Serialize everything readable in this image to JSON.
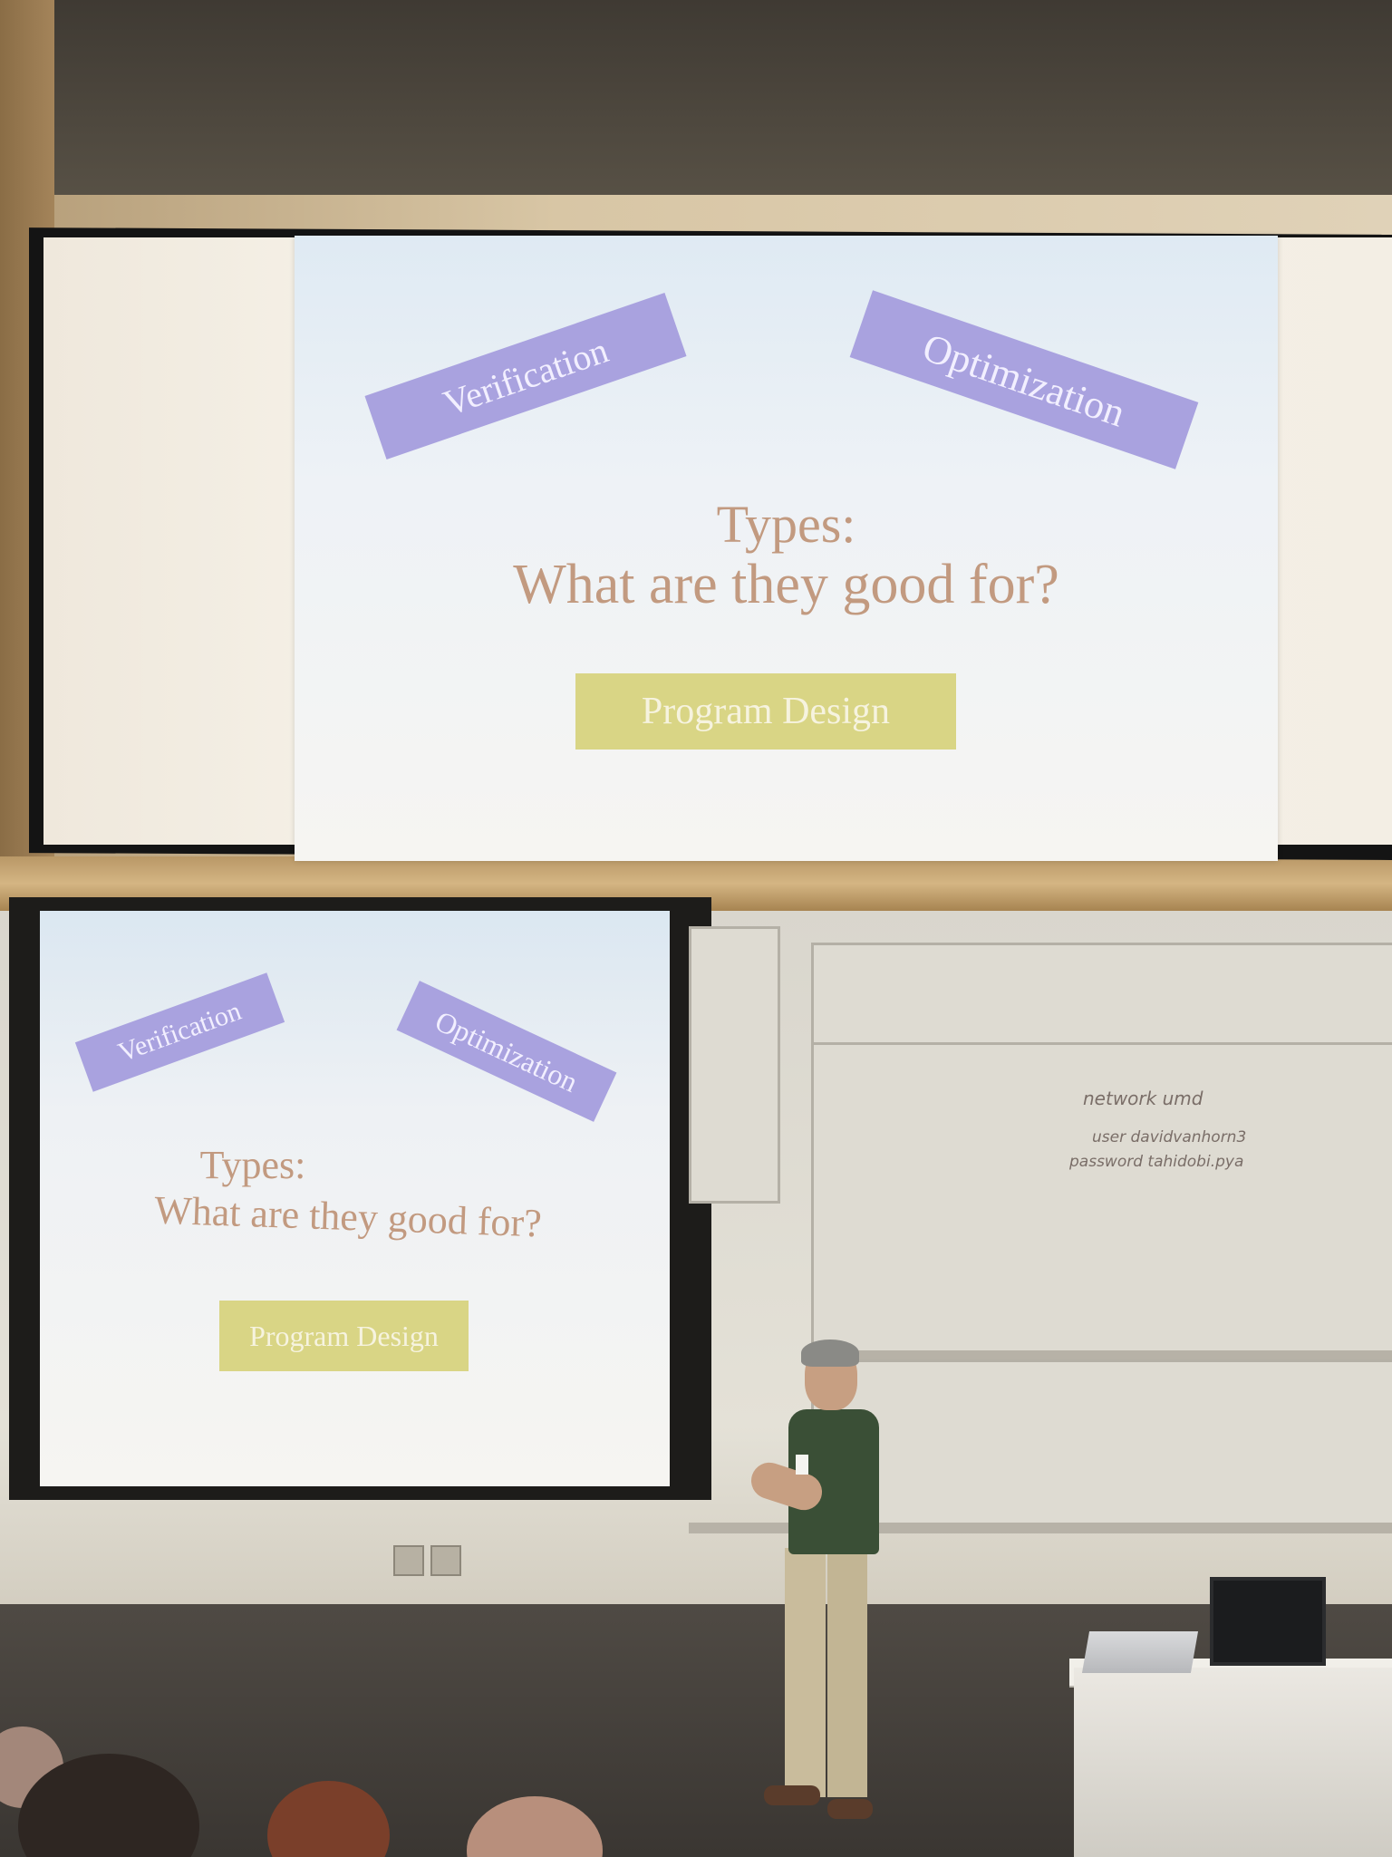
{
  "slide": {
    "tag_left": "Verification",
    "tag_right": "Optimization",
    "title_line1": "Types:",
    "title_line2": "What are they good for?",
    "tag_bottom": "Program Design"
  },
  "whiteboard": {
    "line1": "network   umd",
    "line2": "user      davidvanhorn3",
    "line3": "password  tahidobi.pya"
  },
  "colors": {
    "tag_purple": "#a9a2df",
    "tag_yellow": "#d9d585",
    "title_text": "#c29a80"
  }
}
